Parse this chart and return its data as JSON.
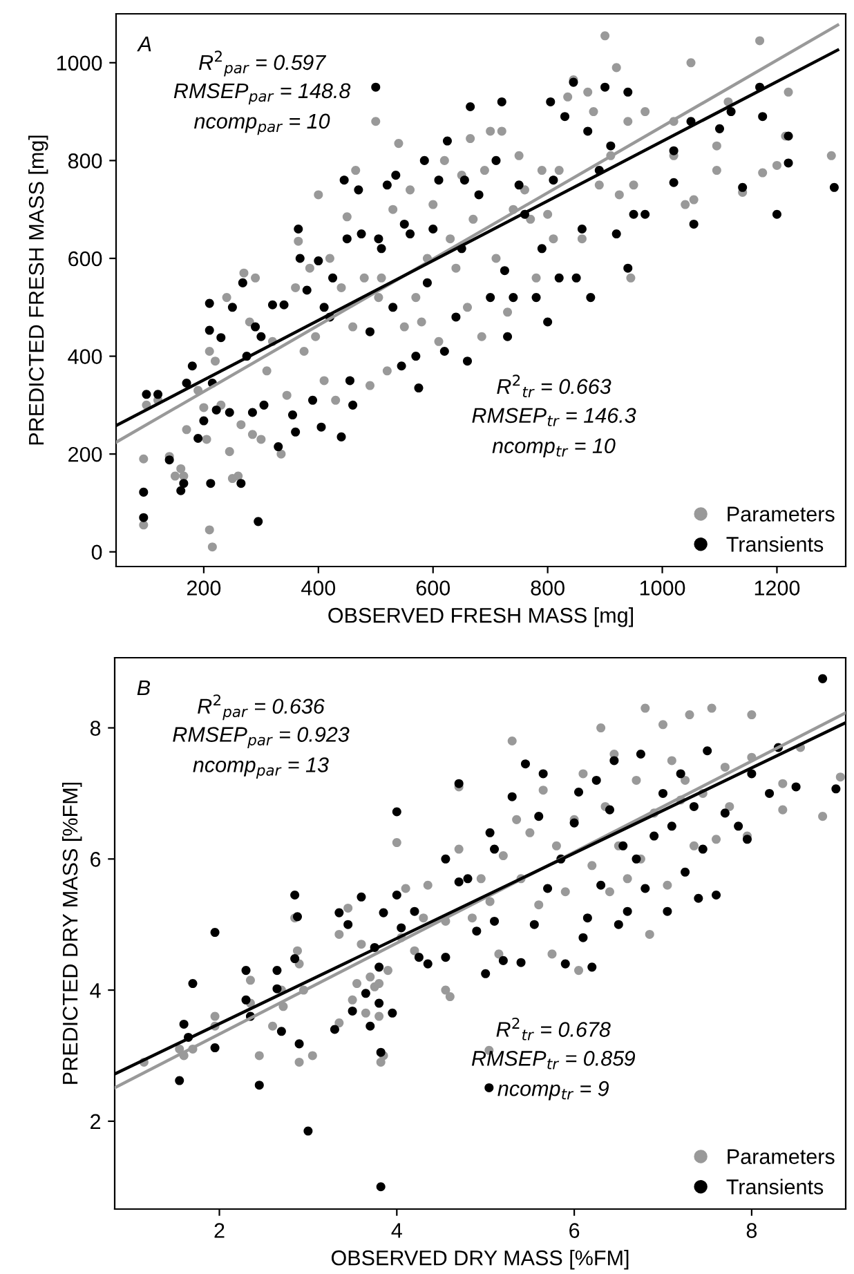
{
  "chart_data": [
    {
      "type": "scatter",
      "title": "A",
      "xlabel": "OBSERVED FRESH MASS [mg]",
      "ylabel": "PREDICTED FRESH MASS [mg]",
      "xlim": [
        47,
        1320
      ],
      "ylim": [
        -30,
        1100
      ],
      "xticks": [
        200,
        400,
        600,
        800,
        1000,
        1200
      ],
      "yticks": [
        0,
        200,
        400,
        600,
        800,
        1000
      ],
      "grid": false,
      "legend": "bottom right",
      "annotations": [
        "R$^{2}$$_{par}$ = 0.597",
        "RMSEP$_{par}$ = 148.8",
        "ncomp$_{par}$ = 10",
        "R$^{2}$$_{tr}$ = 0.663",
        "RMSEP$_{tr}$ = 146.3",
        "ncomp$_{tr}$ = 10"
      ],
      "series": [
        {
          "name": "Parameters",
          "color": "#999999",
          "marker": "circle",
          "x": [
            95,
            95,
            100,
            120,
            140,
            150,
            160,
            165,
            170,
            190,
            200,
            205,
            210,
            210,
            215,
            220,
            230,
            240,
            245,
            250,
            260,
            265,
            270,
            280,
            285,
            290,
            300,
            310,
            320,
            335,
            345,
            360,
            365,
            375,
            385,
            395,
            400,
            410,
            420,
            430,
            440,
            450,
            460,
            465,
            480,
            490,
            500,
            505,
            510,
            520,
            530,
            540,
            550,
            560,
            570,
            580,
            590,
            600,
            610,
            620,
            630,
            640,
            650,
            660,
            665,
            670,
            685,
            690,
            700,
            710,
            720,
            730,
            740,
            750,
            760,
            770,
            780,
            790,
            800,
            810,
            820,
            835,
            845,
            860,
            870,
            880,
            890,
            900,
            910,
            920,
            925,
            940,
            945,
            950,
            970,
            1020,
            1020,
            1040,
            1050,
            1055,
            1095,
            1095,
            1115,
            1140,
            1170,
            1175,
            1200,
            1215,
            1220,
            1295
          ],
          "values": [
            190,
            55,
            300,
            310,
            195,
            155,
            170,
            155,
            250,
            330,
            295,
            230,
            410,
            45,
            10,
            390,
            300,
            520,
            205,
            150,
            155,
            260,
            570,
            470,
            240,
            560,
            230,
            370,
            430,
            200,
            320,
            540,
            635,
            410,
            580,
            440,
            730,
            350,
            600,
            310,
            540,
            685,
            460,
            780,
            560,
            340,
            880,
            520,
            560,
            370,
            700,
            835,
            460,
            740,
            520,
            470,
            600,
            710,
            430,
            800,
            640,
            580,
            770,
            500,
            845,
            680,
            440,
            780,
            860,
            600,
            860,
            490,
            700,
            810,
            740,
            680,
            560,
            780,
            690,
            640,
            780,
            930,
            965,
            640,
            940,
            900,
            750,
            1055,
            810,
            990,
            730,
            880,
            560,
            750,
            900,
            880,
            810,
            710,
            1000,
            720,
            830,
            780,
            920,
            735,
            1045,
            775,
            790,
            850,
            940,
            810
          ]
        },
        {
          "name": "Transients",
          "color": "#000000",
          "marker": "circle",
          "x": [
            95,
            95,
            100,
            120,
            140,
            160,
            165,
            170,
            180,
            190,
            200,
            210,
            210,
            212,
            215,
            222,
            230,
            245,
            250,
            265,
            268,
            275,
            285,
            290,
            295,
            300,
            305,
            320,
            330,
            340,
            355,
            360,
            365,
            368,
            380,
            390,
            400,
            405,
            410,
            420,
            425,
            440,
            445,
            450,
            455,
            460,
            470,
            475,
            490,
            500,
            505,
            510,
            520,
            530,
            535,
            545,
            550,
            560,
            570,
            575,
            585,
            590,
            600,
            610,
            620,
            625,
            640,
            650,
            655,
            660,
            665,
            680,
            700,
            710,
            720,
            725,
            730,
            740,
            750,
            760,
            780,
            790,
            800,
            805,
            810,
            820,
            830,
            845,
            850,
            860,
            870,
            875,
            890,
            900,
            910,
            920,
            940,
            940,
            950,
            970,
            1020,
            1020,
            1050,
            1055,
            1100,
            1120,
            1140,
            1170,
            1175,
            1200,
            1220,
            1220,
            1300
          ],
          "values": [
            70,
            122,
            322,
            322,
            188,
            125,
            140,
            345,
            380,
            232,
            268,
            508,
            453,
            140,
            345,
            290,
            438,
            285,
            500,
            140,
            550,
            400,
            285,
            460,
            62,
            440,
            300,
            505,
            215,
            505,
            280,
            245,
            660,
            600,
            535,
            310,
            595,
            255,
            500,
            480,
            560,
            235,
            760,
            640,
            350,
            300,
            740,
            650,
            450,
            950,
            640,
            620,
            750,
            500,
            770,
            380,
            670,
            650,
            400,
            335,
            800,
            550,
            660,
            760,
            410,
            840,
            480,
            620,
            760,
            390,
            910,
            730,
            520,
            800,
            920,
            575,
            440,
            520,
            750,
            690,
            520,
            620,
            470,
            920,
            760,
            560,
            890,
            960,
            560,
            660,
            860,
            520,
            780,
            950,
            830,
            650,
            940,
            580,
            690,
            690,
            820,
            755,
            880,
            670,
            865,
            900,
            745,
            950,
            890,
            690,
            795,
            850,
            745
          ]
        },
        {
          "type": "line",
          "color": "#999999",
          "x": [
            47,
            1306
          ],
          "values": [
            224,
            1077
          ]
        },
        {
          "type": "line",
          "color": "#000000",
          "x": [
            47,
            1306
          ],
          "values": [
            258,
            1026
          ]
        }
      ]
    },
    {
      "type": "scatter",
      "title": "B",
      "xlabel": "OBSERVED DRY MASS [%FM]",
      "ylabel": "PREDICTED DRY MASS [%FM]",
      "xlim": [
        0.82,
        9.06
      ],
      "ylim": [
        0.66,
        9.07
      ],
      "xticks": [
        2,
        4,
        6,
        8
      ],
      "yticks": [
        2,
        4,
        6,
        8
      ],
      "grid": false,
      "legend": "bottom right",
      "annotations": [
        "R$^{2}$$_{par}$ = 0.636",
        "RMSEP$_{par}$ = 0.923",
        "ncomp$_{par}$ = 13",
        "R$^{2}$$_{tr}$ = 0.678",
        "RMSEP$_{tr}$ = 0.859",
        "ncomp$_{tr}$ = 9"
      ],
      "series": [
        {
          "name": "Parameters",
          "color": "#999999",
          "marker": "circle",
          "x": [
            1.15,
            1.55,
            1.6,
            1.7,
            1.95,
            1.95,
            2.35,
            2.35,
            2.45,
            2.6,
            2.7,
            2.72,
            2.85,
            2.88,
            2.9,
            2.9,
            2.95,
            3.05,
            3.35,
            3.35,
            3.45,
            3.5,
            3.55,
            3.6,
            3.65,
            3.7,
            3.75,
            3.8,
            3.8,
            3.82,
            3.85,
            3.9,
            4.0,
            4.05,
            4.1,
            4.2,
            4.3,
            4.35,
            4.55,
            4.55,
            4.6,
            4.7,
            4.7,
            4.85,
            4.95,
            5.05,
            5.04,
            5.15,
            5.2,
            5.3,
            5.35,
            5.4,
            5.5,
            5.6,
            5.65,
            5.75,
            5.8,
            5.9,
            6.0,
            6.05,
            6.1,
            6.2,
            6.3,
            6.35,
            6.4,
            6.45,
            6.5,
            6.6,
            6.7,
            6.75,
            6.8,
            6.85,
            6.9,
            7.0,
            7.05,
            7.1,
            7.2,
            7.25,
            7.3,
            7.35,
            7.45,
            7.55,
            7.6,
            7.7,
            7.75,
            7.95,
            8.0,
            8.0,
            8.35,
            8.35,
            8.55,
            8.8,
            9.0
          ],
          "values": [
            2.9,
            3.1,
            3.0,
            3.1,
            3.6,
            3.45,
            4.15,
            3.8,
            3.0,
            3.45,
            4.0,
            3.75,
            5.1,
            4.6,
            4.4,
            2.9,
            4.0,
            3.0,
            3.5,
            4.85,
            5.25,
            3.85,
            4.1,
            4.7,
            3.65,
            4.2,
            4.05,
            3.6,
            4.1,
            2.9,
            3.0,
            4.3,
            6.25,
            4.8,
            5.55,
            4.6,
            5.1,
            5.6,
            5.05,
            4.0,
            3.9,
            6.15,
            7.1,
            5.1,
            5.7,
            5.35,
            3.08,
            4.55,
            6.05,
            7.8,
            6.6,
            5.7,
            6.4,
            5.3,
            7.05,
            4.55,
            6.2,
            5.5,
            6.6,
            4.3,
            7.3,
            5.9,
            8.0,
            6.8,
            5.5,
            7.6,
            6.2,
            5.7,
            7.2,
            6.0,
            8.3,
            4.85,
            6.7,
            8.05,
            5.6,
            7.5,
            6.9,
            7.2,
            8.2,
            6.2,
            7.0,
            8.3,
            6.3,
            7.4,
            6.8,
            6.35,
            8.2,
            7.55,
            7.15,
            6.75,
            7.7,
            6.65,
            7.25
          ]
        },
        {
          "name": "Transients",
          "color": "#000000",
          "marker": "circle",
          "x": [
            1.55,
            1.6,
            1.65,
            1.7,
            1.95,
            1.95,
            2.3,
            2.3,
            2.35,
            2.45,
            2.65,
            2.65,
            2.7,
            2.85,
            2.85,
            2.88,
            2.9,
            3.0,
            3.3,
            3.35,
            3.45,
            3.5,
            3.6,
            3.65,
            3.7,
            3.75,
            3.8,
            3.8,
            3.82,
            3.82,
            3.85,
            3.95,
            4.0,
            4.0,
            4.05,
            4.2,
            4.25,
            4.35,
            4.55,
            4.55,
            4.7,
            4.7,
            4.8,
            4.9,
            5.0,
            5.04,
            5.05,
            5.1,
            5.1,
            5.2,
            5.3,
            5.4,
            5.45,
            5.55,
            5.6,
            5.65,
            5.7,
            5.85,
            5.9,
            6.0,
            6.05,
            6.1,
            6.15,
            6.2,
            6.25,
            6.3,
            6.4,
            6.45,
            6.5,
            6.55,
            6.6,
            6.7,
            6.75,
            6.8,
            6.9,
            7.0,
            7.05,
            7.1,
            7.2,
            7.25,
            7.35,
            7.4,
            7.45,
            7.5,
            7.6,
            7.7,
            7.85,
            7.95,
            8.0,
            8.2,
            8.3,
            8.5,
            8.8,
            8.95
          ],
          "values": [
            2.62,
            3.48,
            3.28,
            4.1,
            4.88,
            3.12,
            4.3,
            3.85,
            3.6,
            2.55,
            4.02,
            4.3,
            3.37,
            5.45,
            4.48,
            5.12,
            3.18,
            1.85,
            3.4,
            5.18,
            5.0,
            3.68,
            5.42,
            3.95,
            3.45,
            4.65,
            3.8,
            4.35,
            1.0,
            3.05,
            5.18,
            3.65,
            6.72,
            5.45,
            4.95,
            5.2,
            4.5,
            4.4,
            6.0,
            4.5,
            7.15,
            5.65,
            5.7,
            4.9,
            4.25,
            2.51,
            6.4,
            6.15,
            5.05,
            4.45,
            6.95,
            4.42,
            7.45,
            5.0,
            6.65,
            7.3,
            5.55,
            6.0,
            4.4,
            6.55,
            7.02,
            4.8,
            5.1,
            4.35,
            7.2,
            5.6,
            6.75,
            7.5,
            5.0,
            6.2,
            5.2,
            6.0,
            7.6,
            5.55,
            6.35,
            7.0,
            5.2,
            6.5,
            7.3,
            5.8,
            6.8,
            5.4,
            6.15,
            7.65,
            5.45,
            6.7,
            6.5,
            6.3,
            7.3,
            7.0,
            7.7,
            7.1,
            8.75,
            7.07
          ]
        },
        {
          "type": "line",
          "color": "#999999",
          "x": [
            0.82,
            9.06
          ],
          "values": [
            2.51,
            8.23
          ]
        },
        {
          "type": "line",
          "color": "#000000",
          "x": [
            0.82,
            9.06
          ],
          "values": [
            2.72,
            8.08
          ]
        }
      ]
    }
  ]
}
